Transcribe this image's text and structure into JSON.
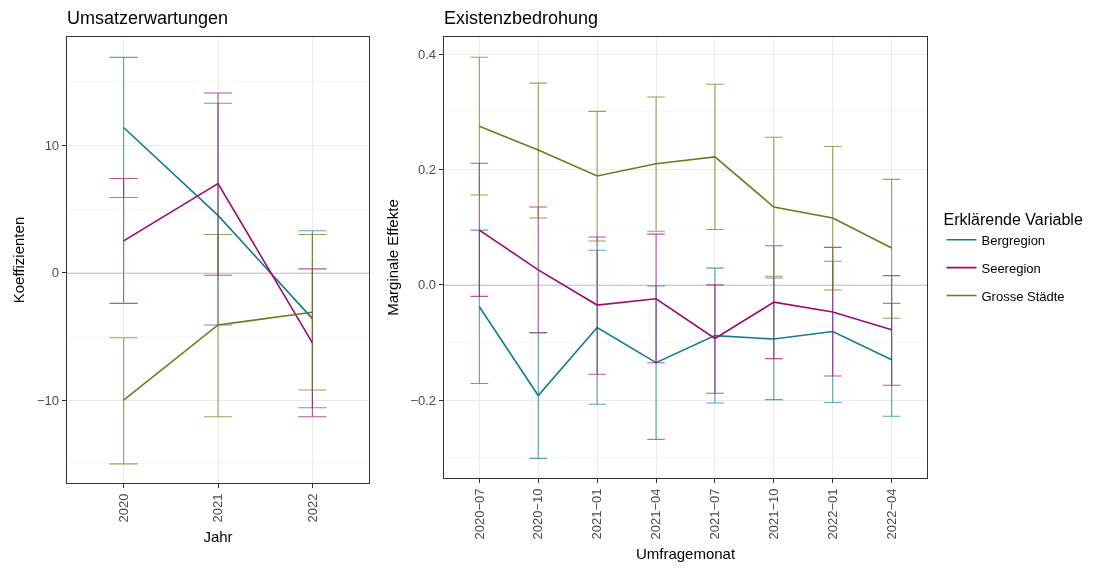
{
  "chart_data": [
    {
      "type": "line",
      "title": "Umsatzerwartungen",
      "xlabel": "Jahr",
      "ylabel": "Koeffizienten",
      "categories": [
        "2020",
        "2021",
        "2022"
      ],
      "series": [
        {
          "color": "#137d8f",
          "values": [
            11.4,
            4.5,
            -3.6
          ],
          "errors": [
            [
              5.9,
              16.9
            ],
            [
              -4.1,
              13.3
            ],
            [
              -10.6,
              3.3
            ]
          ]
        },
        {
          "color": "#9b0d6f",
          "values": [
            2.5,
            7.0,
            -5.5
          ],
          "errors": [
            [
              -2.4,
              7.4
            ],
            [
              -0.2,
              14.1
            ],
            [
              -11.3,
              0.3
            ]
          ]
        },
        {
          "color": "#71791b",
          "values": [
            -10.0,
            -4.1,
            -3.1
          ],
          "errors": [
            [
              -15.0,
              -5.1
            ],
            [
              -11.3,
              3.0
            ],
            [
              -9.2,
              3.0
            ]
          ]
        }
      ],
      "ylim": [
        -16.5,
        18.5
      ],
      "yticks": [
        {
          "value": -10,
          "label": "−10"
        },
        0,
        10
      ],
      "grid": true,
      "ref_lines": [
        {
          "axis": "y",
          "value": 0,
          "color": "#999999"
        }
      ]
    },
    {
      "type": "line",
      "title": "Existenzbedrohung",
      "xlabel": "Umfragemonat",
      "ylabel": "Marginale Effekte",
      "legend_title": "Erklärende Variable",
      "legend": "right",
      "categories": [
        "2020−07",
        "2020−10",
        "2021−01",
        "2021−04",
        "2021−07",
        "2021−10",
        "2022−01",
        "2022−04"
      ],
      "series": [
        {
          "name": "Bergregion",
          "color": "#137d8f",
          "values": [
            -0.038,
            -0.192,
            -0.074,
            -0.135,
            -0.088,
            -0.094,
            -0.081,
            -0.13
          ],
          "errors": [
            [
              -0.171,
              0.095
            ],
            [
              -0.301,
              -0.083
            ],
            [
              -0.207,
              0.06
            ],
            [
              -0.268,
              -0.002
            ],
            [
              -0.205,
              0.029
            ],
            [
              -0.199,
              0.012
            ],
            [
              -0.204,
              0.041
            ],
            [
              -0.228,
              -0.032
            ]
          ]
        },
        {
          "name": "Seeregion",
          "color": "#9b0d6f",
          "values": [
            0.095,
            0.026,
            -0.035,
            -0.024,
            -0.093,
            -0.03,
            -0.047,
            -0.078
          ],
          "errors": [
            [
              -0.02,
              0.211
            ],
            [
              -0.083,
              0.135
            ],
            [
              -0.155,
              0.083
            ],
            [
              -0.135,
              0.088
            ],
            [
              -0.188,
              0.0
            ],
            [
              -0.128,
              0.068
            ],
            [
              -0.158,
              0.065
            ],
            [
              -0.174,
              0.016
            ]
          ]
        },
        {
          "name": "Grosse Städte",
          "color": "#71791b",
          "values": [
            0.275,
            0.234,
            0.189,
            0.21,
            0.222,
            0.135,
            0.116,
            0.064
          ],
          "errors": [
            [
              0.156,
              0.395
            ],
            [
              0.116,
              0.35
            ],
            [
              0.076,
              0.301
            ],
            [
              0.093,
              0.326
            ],
            [
              0.096,
              0.348
            ],
            [
              0.015,
              0.256
            ],
            [
              -0.009,
              0.24
            ],
            [
              -0.058,
              0.183
            ]
          ]
        }
      ],
      "ylim": [
        -0.335,
        0.43
      ],
      "yticks": [
        {
          "value": -0.2,
          "label": "−0.2"
        },
        {
          "value": 0,
          "label": "0.0"
        },
        0.2,
        0.4
      ],
      "grid": true,
      "ref_lines": [
        {
          "axis": "y",
          "value": 0,
          "color": "#999999"
        }
      ]
    }
  ]
}
